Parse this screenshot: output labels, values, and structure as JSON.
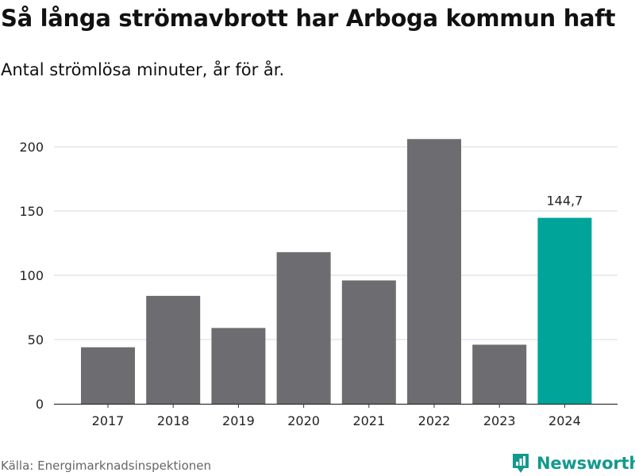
{
  "header": {
    "title": "Så långa strömavbrott har Arboga kommun haft",
    "subtitle": "Antal strömlösa minuter, år för år."
  },
  "footer": {
    "source": "Källa: Energimarknadsinspektionen",
    "brand": "Newsworthy"
  },
  "colors": {
    "bar": "#6d6c70",
    "highlight": "#00a499",
    "grid": "#d9d9d9",
    "brand": "#13998d"
  },
  "icons": {
    "brand": "newsworthy-logo-icon"
  },
  "chart_data": {
    "type": "bar",
    "title": "Så långa strömavbrott har Arboga kommun haft",
    "subtitle": "Antal strömlösa minuter, år för år.",
    "xlabel": "",
    "ylabel": "",
    "categories": [
      "2017",
      "2018",
      "2019",
      "2020",
      "2021",
      "2022",
      "2023",
      "2024"
    ],
    "values": [
      44,
      84,
      59,
      118,
      96,
      206,
      46,
      144.7
    ],
    "highlight_index": 7,
    "highlight_label": "144,7",
    "ylim": [
      0,
      210
    ],
    "yticks": [
      0,
      50,
      100,
      150,
      200
    ],
    "grid": true
  }
}
